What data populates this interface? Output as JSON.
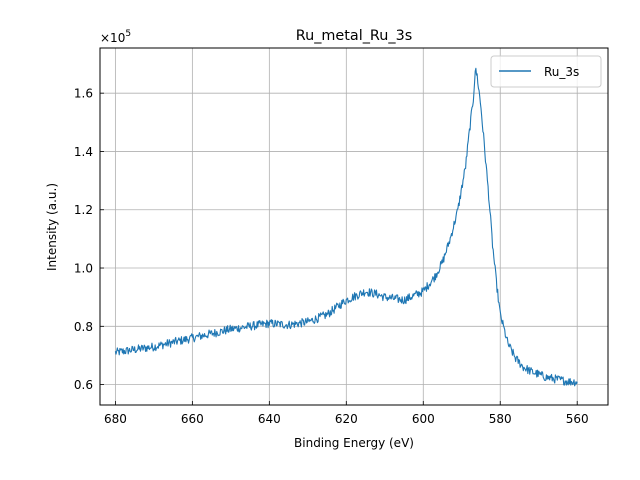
{
  "chart_data": {
    "type": "line",
    "title": "Ru_metal_Ru_3s",
    "xlabel": "Binding Energy (eV)",
    "ylabel": "Intensity (a.u.)",
    "y_offset_text": "×10",
    "y_offset_exponent": "5",
    "x_reversed": true,
    "xlim": [
      684,
      552
    ],
    "ylim": [
      0.53,
      1.755
    ],
    "y_scale_multiplier": 100000,
    "x_ticks": [
      680,
      660,
      640,
      620,
      600,
      580,
      560
    ],
    "x_tick_labels": [
      "680",
      "660",
      "640",
      "620",
      "600",
      "580",
      "560"
    ],
    "y_ticks": [
      0.6,
      0.8,
      1.0,
      1.2,
      1.4,
      1.6
    ],
    "y_tick_labels": [
      "0.6",
      "0.8",
      "1.0",
      "1.2",
      "1.4",
      "1.6"
    ],
    "grid": true,
    "legend_position": "top-right",
    "series": [
      {
        "name": "Ru_3s",
        "color": "#1f77b4",
        "x": [
          680,
          675,
          670,
          665,
          660,
          655,
          650,
          645,
          640,
          635,
          630,
          625,
          620,
          615,
          612,
          610,
          605,
          600,
          597,
          595,
          593,
          591,
          589,
          588,
          587,
          586.5,
          586,
          585,
          584,
          583,
          582,
          581,
          580,
          578,
          576,
          574,
          572,
          570,
          568,
          566,
          564,
          562,
          560
        ],
        "y": [
          0.71,
          0.72,
          0.73,
          0.745,
          0.76,
          0.775,
          0.79,
          0.8,
          0.81,
          0.805,
          0.815,
          0.84,
          0.89,
          0.92,
          0.91,
          0.9,
          0.89,
          0.92,
          0.97,
          1.02,
          1.1,
          1.2,
          1.35,
          1.47,
          1.58,
          1.68,
          1.66,
          1.55,
          1.4,
          1.25,
          1.08,
          0.95,
          0.84,
          0.74,
          0.69,
          0.66,
          0.645,
          0.635,
          0.625,
          0.62,
          0.615,
          0.61,
          0.61
        ]
      }
    ]
  }
}
